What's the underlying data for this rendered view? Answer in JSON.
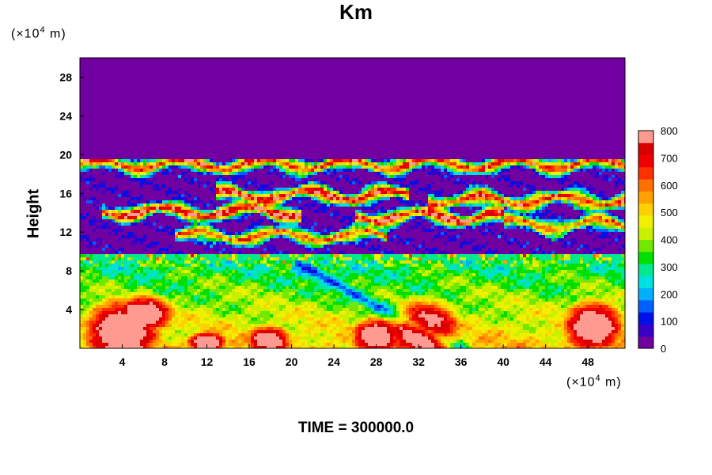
{
  "chart_data": {
    "type": "heatmap",
    "title": "Km",
    "ylabel": "Height",
    "xlabel": "",
    "x_unit": {
      "prefix": "(×10",
      "exp": "4",
      "suffix": " m)"
    },
    "y_unit": {
      "prefix": "(×10",
      "exp": "4",
      "suffix": " m)"
    },
    "xlim": [
      0,
      51.5
    ],
    "ylim": [
      0,
      30
    ],
    "x_ticks": [
      "4",
      "8",
      "12",
      "16",
      "20",
      "24",
      "28",
      "32",
      "36",
      "40",
      "44",
      "48"
    ],
    "y_ticks": [
      "4",
      "8",
      "12",
      "16",
      "20",
      "24",
      "28"
    ],
    "colorbar": {
      "ticks": [
        "0",
        "100",
        "200",
        "300",
        "400",
        "500",
        "600",
        "700",
        "800"
      ],
      "range": [
        0,
        800
      ],
      "colors": [
        "#7000a0",
        "#3a00c8",
        "#0010e8",
        "#0060ff",
        "#00b0ff",
        "#00e0e0",
        "#00e890",
        "#00e000",
        "#70e800",
        "#c8f000",
        "#f0f000",
        "#ffd000",
        "#ffa000",
        "#ff7000",
        "#ff3000",
        "#f00000",
        "#d80000",
        "#ff9a90"
      ]
    },
    "fields": {
      "background_value": 0,
      "upper_layer_bottom": 9,
      "upper_layer_top": 19.7,
      "mixed_layer_top": 8.5
    }
  },
  "footer": {
    "label": "TIME = 300000.0"
  }
}
